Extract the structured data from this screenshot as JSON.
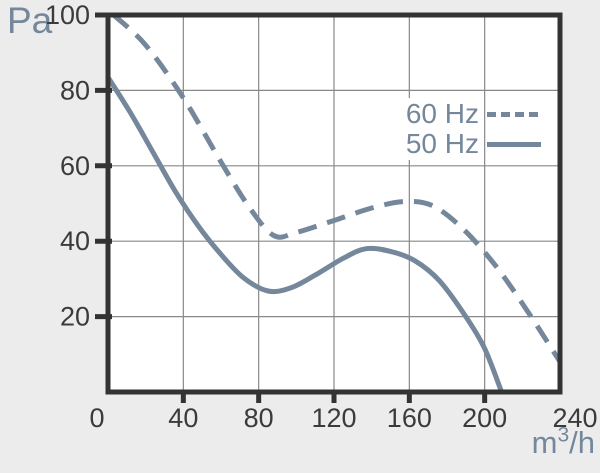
{
  "colors": {
    "background": "#ececec",
    "plot_background": "#ffffff",
    "axis_frame": "#333333",
    "gridline": "#888888",
    "accent_slate": "#75879b",
    "tick_label": "#3b3b3d"
  },
  "legend": {
    "items": [
      {
        "label": "60 Hz",
        "line_style": "dashed"
      },
      {
        "label": "50 Hz",
        "line_style": "solid"
      }
    ]
  },
  "chart_data": {
    "type": "line",
    "grid": true,
    "legend_position": "top-right",
    "x_axis": {
      "unit_base": "m",
      "unit_sup": "3",
      "unit_rest": "/h",
      "ticks": [
        0,
        40,
        80,
        120,
        160,
        200,
        240
      ],
      "range": [
        0,
        240
      ]
    },
    "y_axis": {
      "unit": "Pa",
      "ticks": [
        20,
        40,
        60,
        80,
        100
      ],
      "range": [
        0,
        100
      ]
    },
    "series": [
      {
        "name": "60 Hz",
        "line_style": "dashed",
        "points": [
          [
            3,
            100
          ],
          [
            20,
            92
          ],
          [
            40,
            78
          ],
          [
            60,
            61
          ],
          [
            75,
            49
          ],
          [
            88,
            41.5
          ],
          [
            100,
            42.3
          ],
          [
            120,
            45.5
          ],
          [
            140,
            48.8
          ],
          [
            157,
            50.5
          ],
          [
            172,
            49.5
          ],
          [
            188,
            43.5
          ],
          [
            205,
            34
          ],
          [
            222,
            22
          ],
          [
            240,
            8
          ]
        ]
      },
      {
        "name": "50 Hz",
        "line_style": "solid",
        "points": [
          [
            0,
            83.5
          ],
          [
            12,
            74
          ],
          [
            24,
            63.5
          ],
          [
            36,
            53
          ],
          [
            48,
            44
          ],
          [
            60,
            36.5
          ],
          [
            72,
            30.3
          ],
          [
            85,
            26.8
          ],
          [
            97,
            27.6
          ],
          [
            110,
            31
          ],
          [
            125,
            35.5
          ],
          [
            137,
            38
          ],
          [
            150,
            37.3
          ],
          [
            163,
            34.8
          ],
          [
            176,
            29.5
          ],
          [
            190,
            20
          ],
          [
            200,
            11.5
          ],
          [
            209,
            0
          ]
        ]
      }
    ]
  }
}
